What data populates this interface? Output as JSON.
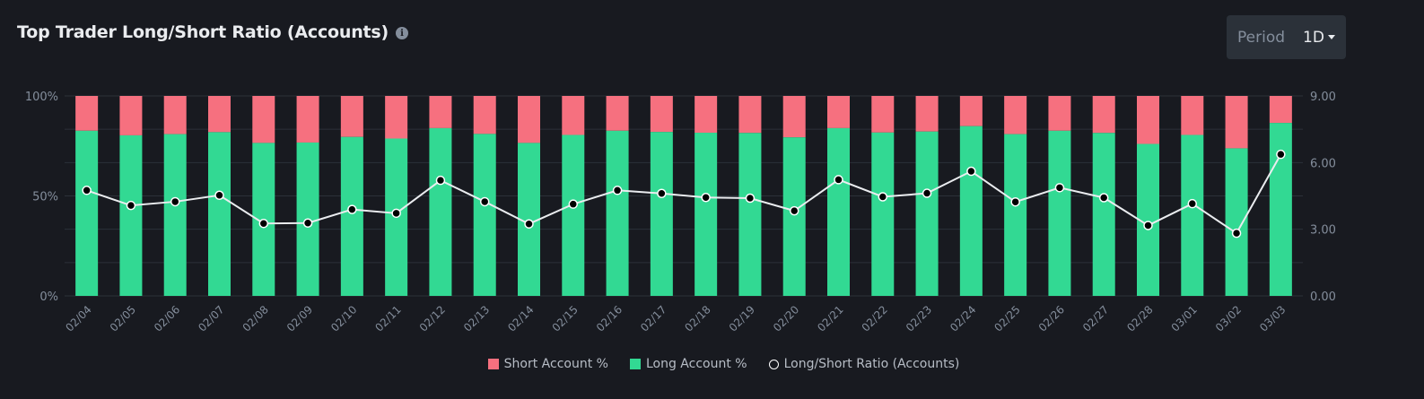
{
  "header": {
    "title": "Top Trader Long/Short Ratio (Accounts)",
    "info_icon": "info-icon"
  },
  "period": {
    "label": "Period",
    "value": "1D"
  },
  "colors": {
    "short": "#f6707f",
    "long": "#32d993",
    "line": "#eaecef",
    "grid": "#2b3139",
    "axis_text": "#848e9c"
  },
  "legend": {
    "short": "Short Account %",
    "long": "Long Account %",
    "ratio": "Long/Short Ratio (Accounts)"
  },
  "chart_data": {
    "type": "bar",
    "stacked": true,
    "categories": [
      "02/04",
      "02/05",
      "02/06",
      "02/07",
      "02/08",
      "02/09",
      "02/10",
      "02/11",
      "02/12",
      "02/13",
      "02/14",
      "02/15",
      "02/16",
      "02/17",
      "02/18",
      "02/19",
      "02/20",
      "02/21",
      "02/22",
      "02/23",
      "02/24",
      "02/25",
      "02/26",
      "02/27",
      "02/28",
      "03/01",
      "03/02",
      "03/03"
    ],
    "series": [
      {
        "name": "Long Account %",
        "axis": "left",
        "values": [
          82.6,
          80.3,
          80.9,
          81.9,
          76.5,
          76.7,
          79.5,
          78.7,
          83.9,
          81.0,
          76.5,
          80.5,
          82.6,
          82.0,
          81.6,
          81.5,
          79.3,
          83.9,
          81.7,
          82.2,
          84.9,
          80.9,
          82.6,
          81.5,
          76.0,
          80.5,
          73.8,
          86.5
        ]
      },
      {
        "name": "Short Account %",
        "axis": "left",
        "values": [
          17.4,
          19.7,
          19.1,
          18.1,
          23.5,
          23.3,
          20.5,
          21.3,
          16.1,
          19.0,
          23.5,
          19.5,
          17.4,
          18.0,
          18.4,
          18.5,
          20.7,
          16.1,
          18.3,
          17.8,
          15.1,
          19.1,
          17.4,
          18.5,
          24.0,
          19.5,
          26.2,
          13.5
        ]
      },
      {
        "name": "Long/Short Ratio (Accounts)",
        "type": "line",
        "axis": "right",
        "values": [
          4.75,
          4.07,
          4.24,
          4.53,
          3.26,
          3.28,
          3.89,
          3.72,
          5.2,
          4.24,
          3.24,
          4.13,
          4.75,
          4.61,
          4.43,
          4.4,
          3.83,
          5.23,
          4.46,
          4.62,
          5.61,
          4.23,
          4.87,
          4.42,
          3.17,
          4.15,
          2.82,
          6.37
        ]
      }
    ],
    "y_left": {
      "ticks": [
        "0%",
        "50%",
        "100%"
      ],
      "ylim": [
        0,
        100
      ]
    },
    "y_right": {
      "ticks": [
        "0.00",
        "3.00",
        "6.00",
        "9.00"
      ],
      "ylim": [
        0,
        9
      ]
    },
    "legend_position": "bottom-center"
  }
}
